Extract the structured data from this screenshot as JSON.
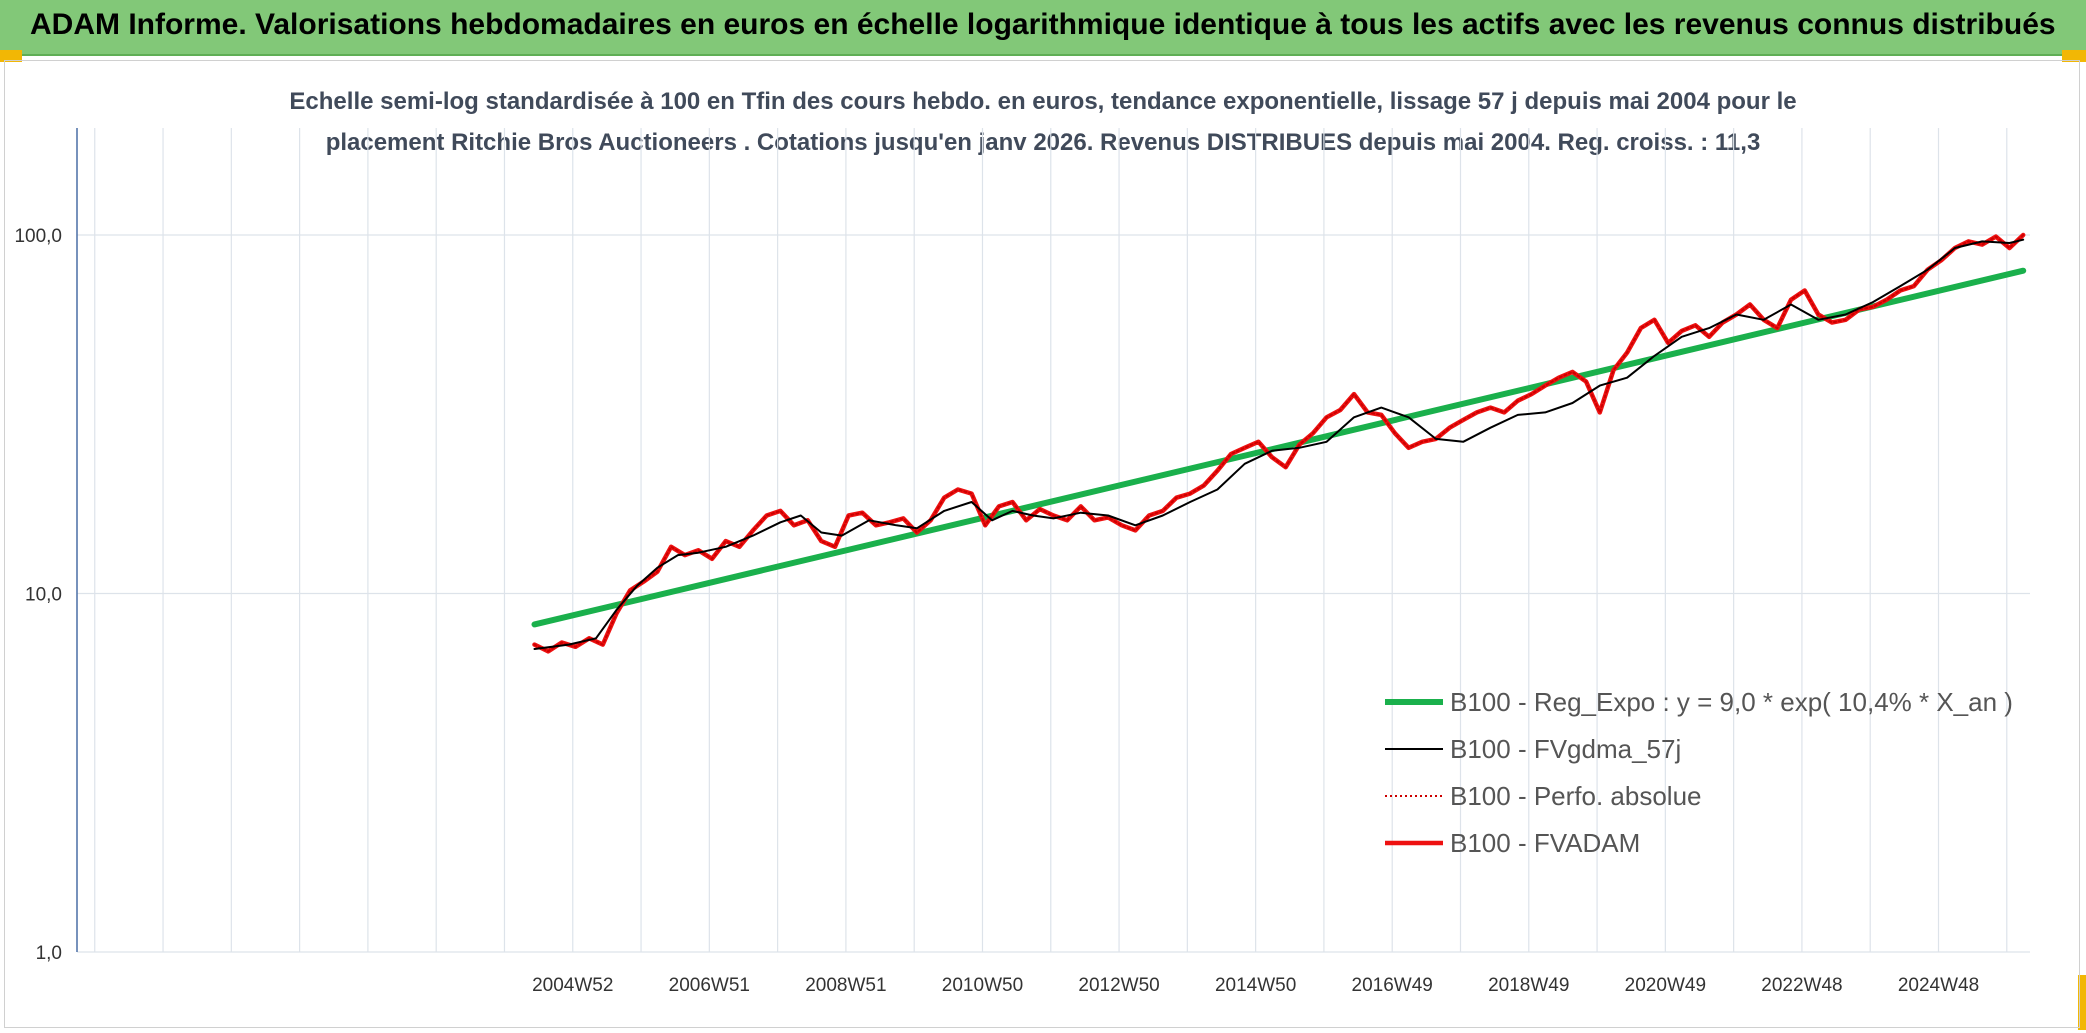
{
  "header": {
    "title": "ADAM Informe. Valorisations hebdomadaires en euros en échelle logarithmique identique à tous les actifs avec les revenus connus distribués"
  },
  "chart_data": {
    "type": "line",
    "title_line1": "Echelle semi-log standardisée à 100 en Tfin des cours hebdo. en euros, tendance exponentielle, lissage 57 j depuis mai 2004 pour le",
    "title_line2": "placement Ritchie Bros Auctioneers . Cotations jusqu'en janv 2026. Revenus DISTRIBUES depuis mai 2004. Reg. croiss. : 11,3",
    "y_scale": "log",
    "ylim": [
      1,
      100
    ],
    "y_ticks": [
      {
        "value": 1,
        "label": "1,0"
      },
      {
        "value": 10,
        "label": "10,0"
      },
      {
        "value": 100,
        "label": "100,0"
      }
    ],
    "x_range": [
      1997.7,
      2026.3
    ],
    "x_ticks": [
      {
        "value": 2004.96,
        "label": "2004W52"
      },
      {
        "value": 2006.96,
        "label": "2006W51"
      },
      {
        "value": 2008.96,
        "label": "2008W51"
      },
      {
        "value": 2010.96,
        "label": "2010W50"
      },
      {
        "value": 2012.96,
        "label": "2012W50"
      },
      {
        "value": 2014.96,
        "label": "2014W50"
      },
      {
        "value": 2016.96,
        "label": "2016W49"
      },
      {
        "value": 2018.96,
        "label": "2018W49"
      },
      {
        "value": 2020.96,
        "label": "2020W49"
      },
      {
        "value": 2022.96,
        "label": "2022W48"
      },
      {
        "value": 2024.96,
        "label": "2024W48"
      }
    ],
    "grid": "vertical",
    "legend_position": "bottom-right",
    "series": [
      {
        "name": "B100 - Reg_Expo : y = 9,0 * exp( 10,4% * X_an )",
        "color": "#1ab04c",
        "style": "solid-thick",
        "x": [
          2004.4,
          2026.2
        ],
        "y": [
          8.2,
          79.5
        ]
      },
      {
        "name": "B100 - FVgdma_57j",
        "color": "#000000",
        "style": "solid-thin",
        "x": [
          2004.4,
          2004.9,
          2005.3,
          2005.6,
          2005.9,
          2006.2,
          2006.5,
          2006.8,
          2007.2,
          2007.6,
          2008.0,
          2008.3,
          2008.6,
          2008.9,
          2009.3,
          2009.7,
          2010.0,
          2010.4,
          2010.8,
          2011.1,
          2011.4,
          2011.7,
          2012.0,
          2012.4,
          2012.8,
          2013.2,
          2013.6,
          2014.0,
          2014.4,
          2014.8,
          2015.2,
          2015.6,
          2016.0,
          2016.4,
          2016.8,
          2017.2,
          2017.6,
          2018.0,
          2018.4,
          2018.8,
          2019.2,
          2019.6,
          2020.0,
          2020.4,
          2020.8,
          2021.2,
          2021.6,
          2022.0,
          2022.4,
          2022.8,
          2023.2,
          2023.6,
          2024.0,
          2024.4,
          2024.8,
          2025.2,
          2025.6,
          2026.0,
          2026.2
        ],
        "y": [
          7.0,
          7.2,
          7.5,
          9.0,
          10.5,
          11.8,
          12.8,
          13.0,
          13.5,
          14.5,
          15.8,
          16.5,
          14.8,
          14.5,
          16.0,
          15.5,
          15.2,
          17.0,
          18.0,
          16.0,
          17.0,
          16.5,
          16.2,
          16.8,
          16.5,
          15.5,
          16.5,
          18.0,
          19.5,
          23.0,
          25.0,
          25.5,
          26.5,
          31.0,
          33.0,
          31.0,
          27.0,
          26.5,
          29.0,
          31.5,
          32.0,
          34.0,
          38.0,
          40.0,
          46.0,
          52.0,
          55.0,
          60.0,
          58.0,
          64.0,
          58.0,
          60.0,
          65.0,
          72.0,
          80.0,
          92.0,
          96.0,
          95.0,
          97.0
        ]
      },
      {
        "name": "B100 - Perfo. absolue",
        "color": "#cc0000",
        "style": "dotted",
        "x": [
          2004.4,
          2004.6,
          2004.8,
          2005.0,
          2005.2,
          2005.4,
          2005.6,
          2005.8,
          2006.0,
          2006.2,
          2006.4,
          2006.6,
          2006.8,
          2007.0,
          2007.2,
          2007.4,
          2007.6,
          2007.8,
          2008.0,
          2008.2,
          2008.4,
          2008.6,
          2008.8,
          2009.0,
          2009.2,
          2009.4,
          2009.6,
          2009.8,
          2010.0,
          2010.2,
          2010.4,
          2010.6,
          2010.8,
          2011.0,
          2011.2,
          2011.4,
          2011.6,
          2011.8,
          2012.0,
          2012.2,
          2012.4,
          2012.6,
          2012.8,
          2013.0,
          2013.2,
          2013.4,
          2013.6,
          2013.8,
          2014.0,
          2014.2,
          2014.4,
          2014.6,
          2014.8,
          2015.0,
          2015.2,
          2015.4,
          2015.6,
          2015.8,
          2016.0,
          2016.2,
          2016.4,
          2016.6,
          2016.8,
          2017.0,
          2017.2,
          2017.4,
          2017.6,
          2017.8,
          2018.0,
          2018.2,
          2018.4,
          2018.6,
          2018.8,
          2019.0,
          2019.2,
          2019.4,
          2019.6,
          2019.8,
          2020.0,
          2020.2,
          2020.4,
          2020.6,
          2020.8,
          2021.0,
          2021.2,
          2021.4,
          2021.6,
          2021.8,
          2022.0,
          2022.2,
          2022.4,
          2022.6,
          2022.8,
          2023.0,
          2023.2,
          2023.4,
          2023.6,
          2023.8,
          2024.0,
          2024.2,
          2024.4,
          2024.6,
          2024.8,
          2025.0,
          2025.2,
          2025.4,
          2025.6,
          2025.8,
          2026.0,
          2026.2
        ],
        "y": [
          7.2,
          6.9,
          7.3,
          7.1,
          7.5,
          7.2,
          8.8,
          10.2,
          10.8,
          11.5,
          13.5,
          12.8,
          13.2,
          12.5,
          14.0,
          13.5,
          15.0,
          16.5,
          17.0,
          15.5,
          16.0,
          14.0,
          13.5,
          16.5,
          16.8,
          15.5,
          15.8,
          16.2,
          14.8,
          16.0,
          18.5,
          19.5,
          19.0,
          15.5,
          17.5,
          18.0,
          16.0,
          17.2,
          16.5,
          16.0,
          17.5,
          16.0,
          16.3,
          15.5,
          15.0,
          16.5,
          17.0,
          18.5,
          19.0,
          20.0,
          22.0,
          24.5,
          25.5,
          26.5,
          24.0,
          22.5,
          26.0,
          28.0,
          31.0,
          32.5,
          36.0,
          32.0,
          31.5,
          28.0,
          25.5,
          26.5,
          27.0,
          29.0,
          30.5,
          32.0,
          33.0,
          32.0,
          34.5,
          36.0,
          38.0,
          40.0,
          41.5,
          39.0,
          32.0,
          42.0,
          47.0,
          55.0,
          58.0,
          50.0,
          54.0,
          56.0,
          52.0,
          57.0,
          60.0,
          64.0,
          58.0,
          55.0,
          66.0,
          70.0,
          60.0,
          57.0,
          58.0,
          62.0,
          63.0,
          66.0,
          70.0,
          72.0,
          80.0,
          85.0,
          92.0,
          96.0,
          94.0,
          99.0,
          92.0,
          100.0
        ]
      },
      {
        "name": "B100 - FVADAM",
        "color": "#ee1111",
        "style": "solid-thick",
        "x": [
          2004.4,
          2004.6,
          2004.8,
          2005.0,
          2005.2,
          2005.4,
          2005.6,
          2005.8,
          2006.0,
          2006.2,
          2006.4,
          2006.6,
          2006.8,
          2007.0,
          2007.2,
          2007.4,
          2007.6,
          2007.8,
          2008.0,
          2008.2,
          2008.4,
          2008.6,
          2008.8,
          2009.0,
          2009.2,
          2009.4,
          2009.6,
          2009.8,
          2010.0,
          2010.2,
          2010.4,
          2010.6,
          2010.8,
          2011.0,
          2011.2,
          2011.4,
          2011.6,
          2011.8,
          2012.0,
          2012.2,
          2012.4,
          2012.6,
          2012.8,
          2013.0,
          2013.2,
          2013.4,
          2013.6,
          2013.8,
          2014.0,
          2014.2,
          2014.4,
          2014.6,
          2014.8,
          2015.0,
          2015.2,
          2015.4,
          2015.6,
          2015.8,
          2016.0,
          2016.2,
          2016.4,
          2016.6,
          2016.8,
          2017.0,
          2017.2,
          2017.4,
          2017.6,
          2017.8,
          2018.0,
          2018.2,
          2018.4,
          2018.6,
          2018.8,
          2019.0,
          2019.2,
          2019.4,
          2019.6,
          2019.8,
          2020.0,
          2020.2,
          2020.4,
          2020.6,
          2020.8,
          2021.0,
          2021.2,
          2021.4,
          2021.6,
          2021.8,
          2022.0,
          2022.2,
          2022.4,
          2022.6,
          2022.8,
          2023.0,
          2023.2,
          2023.4,
          2023.6,
          2023.8,
          2024.0,
          2024.2,
          2024.4,
          2024.6,
          2024.8,
          2025.0,
          2025.2,
          2025.4,
          2025.6,
          2025.8,
          2026.0,
          2026.2
        ],
        "y": [
          7.2,
          6.9,
          7.3,
          7.1,
          7.5,
          7.2,
          8.8,
          10.2,
          10.8,
          11.5,
          13.5,
          12.8,
          13.2,
          12.5,
          14.0,
          13.5,
          15.0,
          16.5,
          17.0,
          15.5,
          16.0,
          14.0,
          13.5,
          16.5,
          16.8,
          15.5,
          15.8,
          16.2,
          14.8,
          16.0,
          18.5,
          19.5,
          19.0,
          15.5,
          17.5,
          18.0,
          16.0,
          17.2,
          16.5,
          16.0,
          17.5,
          16.0,
          16.3,
          15.5,
          15.0,
          16.5,
          17.0,
          18.5,
          19.0,
          20.0,
          22.0,
          24.5,
          25.5,
          26.5,
          24.0,
          22.5,
          26.0,
          28.0,
          31.0,
          32.5,
          36.0,
          32.0,
          31.5,
          28.0,
          25.5,
          26.5,
          27.0,
          29.0,
          30.5,
          32.0,
          33.0,
          32.0,
          34.5,
          36.0,
          38.0,
          40.0,
          41.5,
          39.0,
          32.0,
          42.0,
          47.0,
          55.0,
          58.0,
          50.0,
          54.0,
          56.0,
          52.0,
          57.0,
          60.0,
          64.0,
          58.0,
          55.0,
          66.0,
          70.0,
          60.0,
          57.0,
          58.0,
          62.0,
          63.0,
          66.0,
          70.0,
          72.0,
          80.0,
          85.0,
          92.0,
          96.0,
          94.0,
          99.0,
          92.0,
          100.0
        ]
      }
    ]
  }
}
